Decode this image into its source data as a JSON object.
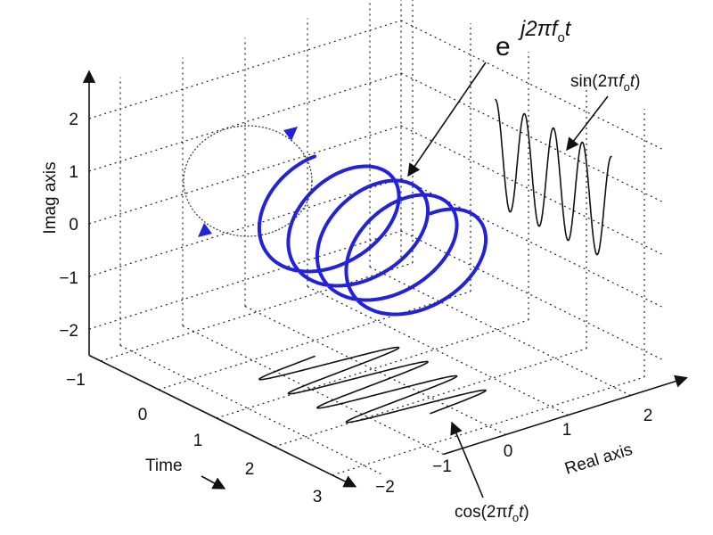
{
  "exponential": {
    "base": "e",
    "exponent": "j2π",
    "f": "f",
    "sub": "o",
    "var": "t"
  },
  "sine_label": {
    "prefix": "sin(2π",
    "f": "f",
    "sub": "o",
    "var": "t",
    "suffix": ")"
  },
  "cosine_label": {
    "prefix": "cos(2π",
    "f": "f",
    "sub": "o",
    "var": "t",
    "suffix": ")"
  },
  "imag_axis": {
    "label": "Imag axis",
    "ticks": [
      "2",
      "1",
      "0",
      "−1",
      "−2"
    ]
  },
  "time_axis": {
    "label": "Time",
    "ticks": [
      "−1",
      "0",
      "1",
      "2",
      "3"
    ]
  },
  "real_axis": {
    "label": "Real axis",
    "ticks": [
      "−2",
      "−1",
      "0",
      "1",
      "2"
    ]
  }
}
